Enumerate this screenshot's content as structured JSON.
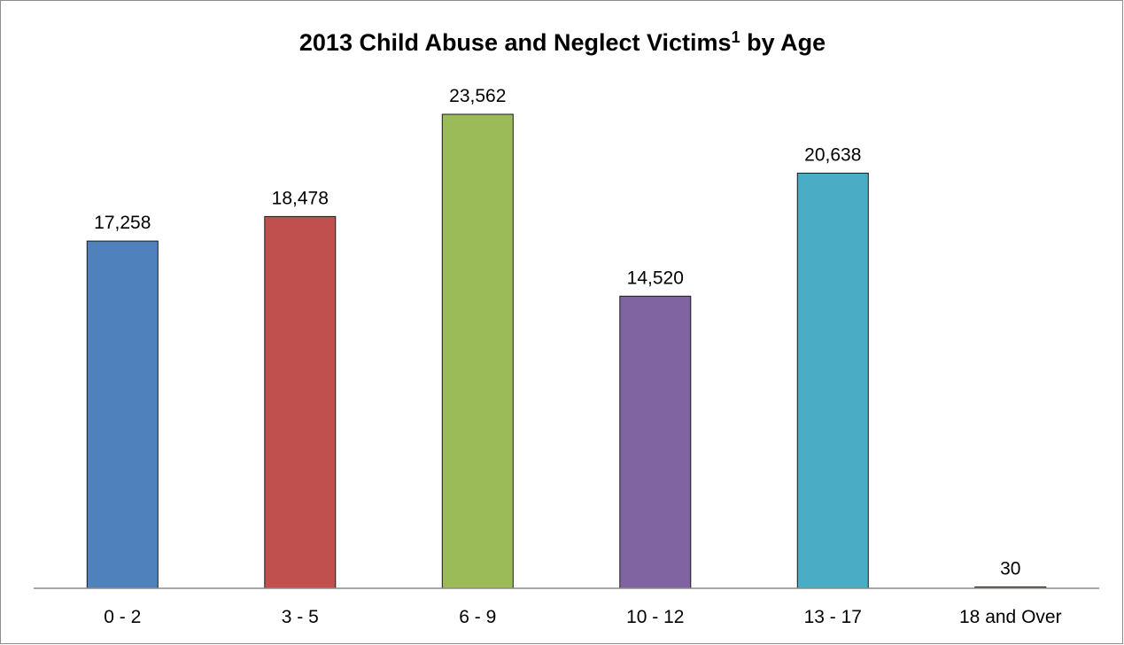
{
  "chart_data": {
    "type": "bar",
    "title": "2013 Child Abuse and Neglect Victims",
    "title_superscript": "1",
    "title_suffix": " by Age",
    "categories": [
      "0 - 2",
      "3 - 5",
      "6 - 9",
      "10 - 12",
      "13 - 17",
      "18 and Over"
    ],
    "values": [
      17258,
      18478,
      23562,
      14520,
      20638,
      30
    ],
    "data_labels": [
      "17,258",
      "18,478",
      "23,562",
      "14,520",
      "20,638",
      "30"
    ],
    "colors": [
      "#4f81bd",
      "#c0504d",
      "#9bbb59",
      "#8064a2",
      "#4bacc6",
      "#f79646"
    ],
    "xlabel": "",
    "ylabel": "",
    "ylim": [
      0,
      25000
    ],
    "grid": false,
    "legend": "none"
  }
}
